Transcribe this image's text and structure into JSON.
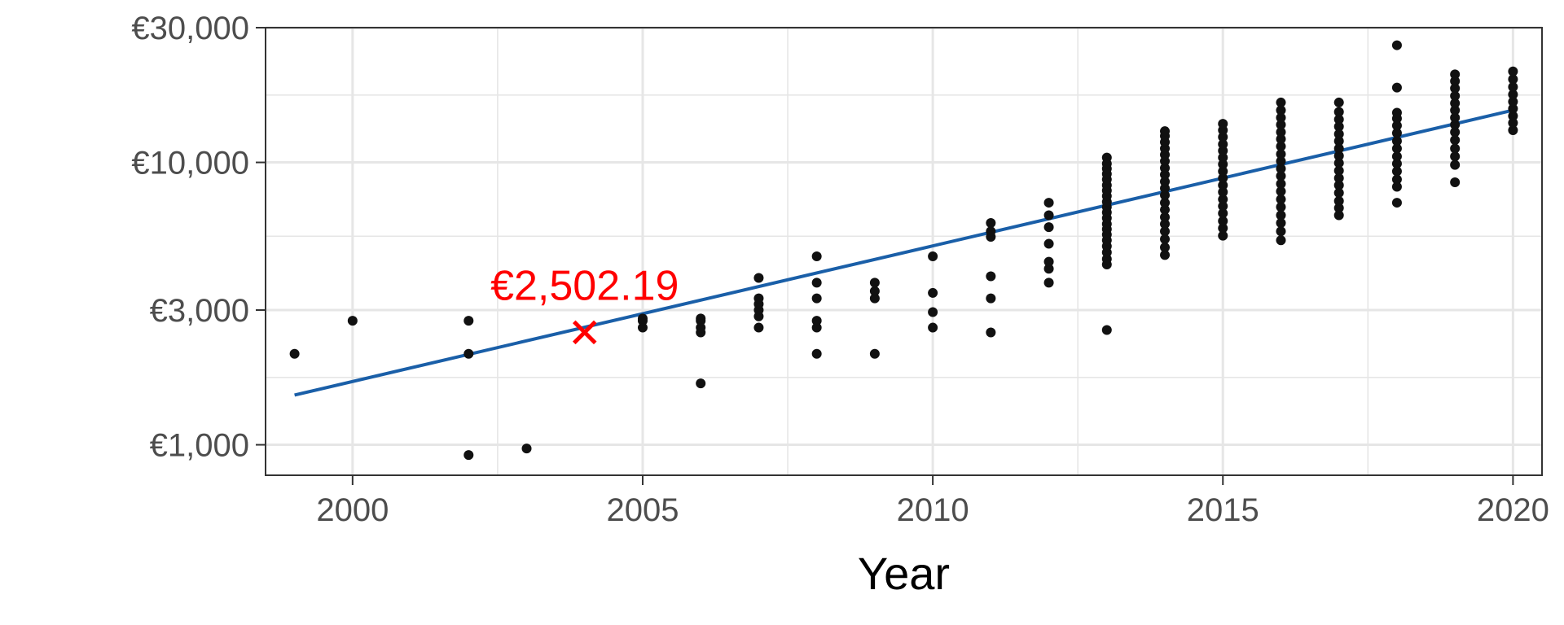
{
  "chart_data": {
    "type": "scatter",
    "title": "",
    "xlabel": "Year",
    "ylabel": "",
    "x_scale": "linear",
    "y_scale": "log",
    "xlim": [
      1998.5,
      2020.5
    ],
    "ylim": [
      780,
      30000
    ],
    "x_ticks": [
      2000,
      2005,
      2010,
      2015,
      2020
    ],
    "x_tick_labels": [
      "2000",
      "2005",
      "2010",
      "2015",
      "2020"
    ],
    "y_ticks": [
      1000,
      3000,
      10000,
      30000
    ],
    "y_tick_labels": [
      "€1,000",
      "€3,000",
      "€10,000",
      "€30,000"
    ],
    "grid": true,
    "legend": "none",
    "colors": {
      "points": "#111111",
      "trend": "#1a5fa8",
      "highlight": "#ff0000",
      "grid": "#e6e6e6",
      "axis_text": "#4d4d4d"
    },
    "trend_line": {
      "x": [
        1999,
        2020
      ],
      "y": [
        1500,
        15300
      ]
    },
    "highlight": {
      "x": 2004,
      "y": 2502.19,
      "label": "€2,502.19",
      "marker": "x"
    },
    "points": [
      {
        "x": 1999,
        "y": 2100
      },
      {
        "x": 2000,
        "y": 2750
      },
      {
        "x": 2002,
        "y": 920
      },
      {
        "x": 2002,
        "y": 2100
      },
      {
        "x": 2002,
        "y": 2750
      },
      {
        "x": 2003,
        "y": 970
      },
      {
        "x": 2005,
        "y": 2600
      },
      {
        "x": 2005,
        "y": 2750
      },
      {
        "x": 2005,
        "y": 2800
      },
      {
        "x": 2006,
        "y": 1650
      },
      {
        "x": 2006,
        "y": 2500
      },
      {
        "x": 2006,
        "y": 2600
      },
      {
        "x": 2006,
        "y": 2750
      },
      {
        "x": 2006,
        "y": 2800
      },
      {
        "x": 2007,
        "y": 2600
      },
      {
        "x": 2007,
        "y": 2850
      },
      {
        "x": 2007,
        "y": 3000
      },
      {
        "x": 2007,
        "y": 3150
      },
      {
        "x": 2007,
        "y": 3300
      },
      {
        "x": 2007,
        "y": 3900
      },
      {
        "x": 2008,
        "y": 2100
      },
      {
        "x": 2008,
        "y": 2600
      },
      {
        "x": 2008,
        "y": 2750
      },
      {
        "x": 2008,
        "y": 3300
      },
      {
        "x": 2008,
        "y": 3750
      },
      {
        "x": 2008,
        "y": 4650
      },
      {
        "x": 2009,
        "y": 2100
      },
      {
        "x": 2009,
        "y": 3300
      },
      {
        "x": 2009,
        "y": 3500
      },
      {
        "x": 2009,
        "y": 3750
      },
      {
        "x": 2010,
        "y": 2600
      },
      {
        "x": 2010,
        "y": 2950
      },
      {
        "x": 2010,
        "y": 3450
      },
      {
        "x": 2010,
        "y": 4650
      },
      {
        "x": 2011,
        "y": 2500
      },
      {
        "x": 2011,
        "y": 3300
      },
      {
        "x": 2011,
        "y": 3950
      },
      {
        "x": 2011,
        "y": 5450
      },
      {
        "x": 2011,
        "y": 5700
      },
      {
        "x": 2011,
        "y": 6100
      },
      {
        "x": 2012,
        "y": 3750
      },
      {
        "x": 2012,
        "y": 4200
      },
      {
        "x": 2012,
        "y": 4450
      },
      {
        "x": 2012,
        "y": 5150
      },
      {
        "x": 2012,
        "y": 5900
      },
      {
        "x": 2012,
        "y": 6500
      },
      {
        "x": 2012,
        "y": 7200
      },
      {
        "x": 2013,
        "y": 2550
      },
      {
        "x": 2013,
        "y": 4350
      },
      {
        "x": 2013,
        "y": 4550
      },
      {
        "x": 2013,
        "y": 4800
      },
      {
        "x": 2013,
        "y": 5050
      },
      {
        "x": 2013,
        "y": 5300
      },
      {
        "x": 2013,
        "y": 5550
      },
      {
        "x": 2013,
        "y": 5800
      },
      {
        "x": 2013,
        "y": 6050
      },
      {
        "x": 2013,
        "y": 6350
      },
      {
        "x": 2013,
        "y": 6650
      },
      {
        "x": 2013,
        "y": 6950
      },
      {
        "x": 2013,
        "y": 7250
      },
      {
        "x": 2013,
        "y": 7600
      },
      {
        "x": 2013,
        "y": 7950
      },
      {
        "x": 2013,
        "y": 8300
      },
      {
        "x": 2013,
        "y": 8700
      },
      {
        "x": 2013,
        "y": 9100
      },
      {
        "x": 2013,
        "y": 9500
      },
      {
        "x": 2013,
        "y": 9900
      },
      {
        "x": 2013,
        "y": 10400
      },
      {
        "x": 2014,
        "y": 4700
      },
      {
        "x": 2014,
        "y": 5000
      },
      {
        "x": 2014,
        "y": 5350
      },
      {
        "x": 2014,
        "y": 5700
      },
      {
        "x": 2014,
        "y": 6050
      },
      {
        "x": 2014,
        "y": 6400
      },
      {
        "x": 2014,
        "y": 6800
      },
      {
        "x": 2014,
        "y": 7200
      },
      {
        "x": 2014,
        "y": 7650
      },
      {
        "x": 2014,
        "y": 8100
      },
      {
        "x": 2014,
        "y": 8550
      },
      {
        "x": 2014,
        "y": 9050
      },
      {
        "x": 2014,
        "y": 9550
      },
      {
        "x": 2014,
        "y": 10100
      },
      {
        "x": 2014,
        "y": 10650
      },
      {
        "x": 2014,
        "y": 11200
      },
      {
        "x": 2014,
        "y": 11800
      },
      {
        "x": 2014,
        "y": 12400
      },
      {
        "x": 2014,
        "y": 12900
      },
      {
        "x": 2015,
        "y": 5500
      },
      {
        "x": 2015,
        "y": 5850
      },
      {
        "x": 2015,
        "y": 6200
      },
      {
        "x": 2015,
        "y": 6600
      },
      {
        "x": 2015,
        "y": 7000
      },
      {
        "x": 2015,
        "y": 7400
      },
      {
        "x": 2015,
        "y": 7850
      },
      {
        "x": 2015,
        "y": 8300
      },
      {
        "x": 2015,
        "y": 8800
      },
      {
        "x": 2015,
        "y": 9300
      },
      {
        "x": 2015,
        "y": 9850
      },
      {
        "x": 2015,
        "y": 10400
      },
      {
        "x": 2015,
        "y": 11000
      },
      {
        "x": 2015,
        "y": 11600
      },
      {
        "x": 2015,
        "y": 12300
      },
      {
        "x": 2015,
        "y": 13000
      },
      {
        "x": 2015,
        "y": 13700
      },
      {
        "x": 2016,
        "y": 5300
      },
      {
        "x": 2016,
        "y": 5700
      },
      {
        "x": 2016,
        "y": 6100
      },
      {
        "x": 2016,
        "y": 6500
      },
      {
        "x": 2016,
        "y": 6950
      },
      {
        "x": 2016,
        "y": 7400
      },
      {
        "x": 2016,
        "y": 7900
      },
      {
        "x": 2016,
        "y": 8400
      },
      {
        "x": 2016,
        "y": 8950
      },
      {
        "x": 2016,
        "y": 9500
      },
      {
        "x": 2016,
        "y": 10100
      },
      {
        "x": 2016,
        "y": 10700
      },
      {
        "x": 2016,
        "y": 11400
      },
      {
        "x": 2016,
        "y": 12100
      },
      {
        "x": 2016,
        "y": 12800
      },
      {
        "x": 2016,
        "y": 13600
      },
      {
        "x": 2016,
        "y": 14400
      },
      {
        "x": 2016,
        "y": 15300
      },
      {
        "x": 2016,
        "y": 16300
      },
      {
        "x": 2017,
        "y": 6500
      },
      {
        "x": 2017,
        "y": 6900
      },
      {
        "x": 2017,
        "y": 7300
      },
      {
        "x": 2017,
        "y": 7800
      },
      {
        "x": 2017,
        "y": 8300
      },
      {
        "x": 2017,
        "y": 8800
      },
      {
        "x": 2017,
        "y": 9350
      },
      {
        "x": 2017,
        "y": 9950
      },
      {
        "x": 2017,
        "y": 10550
      },
      {
        "x": 2017,
        "y": 11200
      },
      {
        "x": 2017,
        "y": 11900
      },
      {
        "x": 2017,
        "y": 12600
      },
      {
        "x": 2017,
        "y": 13400
      },
      {
        "x": 2017,
        "y": 14200
      },
      {
        "x": 2017,
        "y": 15100
      },
      {
        "x": 2017,
        "y": 16300
      },
      {
        "x": 2018,
        "y": 7200
      },
      {
        "x": 2018,
        "y": 8200
      },
      {
        "x": 2018,
        "y": 8700
      },
      {
        "x": 2018,
        "y": 9300
      },
      {
        "x": 2018,
        "y": 9900
      },
      {
        "x": 2018,
        "y": 10500
      },
      {
        "x": 2018,
        "y": 11200
      },
      {
        "x": 2018,
        "y": 11900
      },
      {
        "x": 2018,
        "y": 12700
      },
      {
        "x": 2018,
        "y": 13500
      },
      {
        "x": 2018,
        "y": 14300
      },
      {
        "x": 2018,
        "y": 15000
      },
      {
        "x": 2018,
        "y": 18400
      },
      {
        "x": 2018,
        "y": 26000
      },
      {
        "x": 2019,
        "y": 8500
      },
      {
        "x": 2019,
        "y": 9800
      },
      {
        "x": 2019,
        "y": 10500
      },
      {
        "x": 2019,
        "y": 11200
      },
      {
        "x": 2019,
        "y": 12000
      },
      {
        "x": 2019,
        "y": 12800
      },
      {
        "x": 2019,
        "y": 13600
      },
      {
        "x": 2019,
        "y": 14400
      },
      {
        "x": 2019,
        "y": 15300
      },
      {
        "x": 2019,
        "y": 16200
      },
      {
        "x": 2019,
        "y": 17200
      },
      {
        "x": 2019,
        "y": 18300
      },
      {
        "x": 2019,
        "y": 19400
      },
      {
        "x": 2019,
        "y": 20500
      },
      {
        "x": 2020,
        "y": 13000
      },
      {
        "x": 2020,
        "y": 13800
      },
      {
        "x": 2020,
        "y": 14600
      },
      {
        "x": 2020,
        "y": 15500
      },
      {
        "x": 2020,
        "y": 16400
      },
      {
        "x": 2020,
        "y": 17400
      },
      {
        "x": 2020,
        "y": 18500
      },
      {
        "x": 2020,
        "y": 19700
      },
      {
        "x": 2020,
        "y": 21000
      }
    ]
  }
}
